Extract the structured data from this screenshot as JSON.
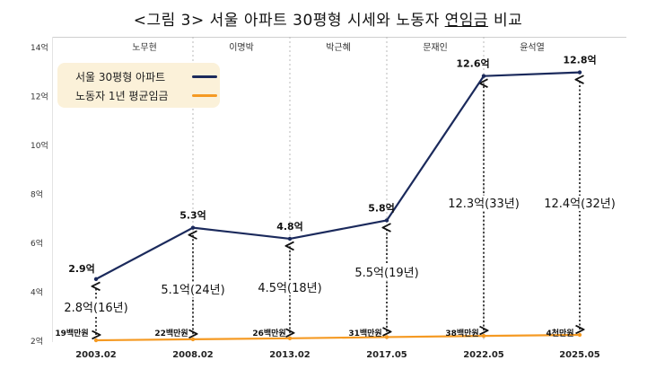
{
  "chart_data": {
    "type": "line",
    "title": "<그림 3> 서울 아파트 30평형 시세와 노동자 연임금 비교",
    "x": [
      "2003.02",
      "2008.02",
      "2013.02",
      "2017.05",
      "2022.05",
      "2025.05"
    ],
    "y_ticks": [
      "2억",
      "4억",
      "6억",
      "8억",
      "10억",
      "12억",
      "14억"
    ],
    "ylim": [
      2,
      14
    ],
    "grid": false,
    "legend_position": "top-left",
    "administrations": [
      "노무현",
      "이명박",
      "박근혜",
      "문재인",
      "윤석열"
    ],
    "series": [
      {
        "name": "서울 30평형 아파트",
        "color": "#1b2a5c",
        "values": [
          4.5,
          6.6,
          6.15,
          6.9,
          12.8,
          12.95
        ],
        "labels": [
          "2.9억",
          "5.3억",
          "4.8억",
          "5.8억",
          "12.6억",
          "12.8억"
        ]
      },
      {
        "name": "노동자 1년 평균임금",
        "color": "#f59a23",
        "values": [
          2.0,
          2.04,
          2.08,
          2.13,
          2.18,
          2.22
        ],
        "labels": [
          "19백만원",
          "22백만원",
          "26백만원",
          "31백만원",
          "38백만원",
          "4천만원"
        ]
      }
    ],
    "ratio_labels": [
      "2.8억(16년)",
      "5.1억(24년)",
      "4.5억(18년)",
      "5.5억(19년)",
      "12.3억(33년)",
      "12.4억(32년)"
    ]
  }
}
